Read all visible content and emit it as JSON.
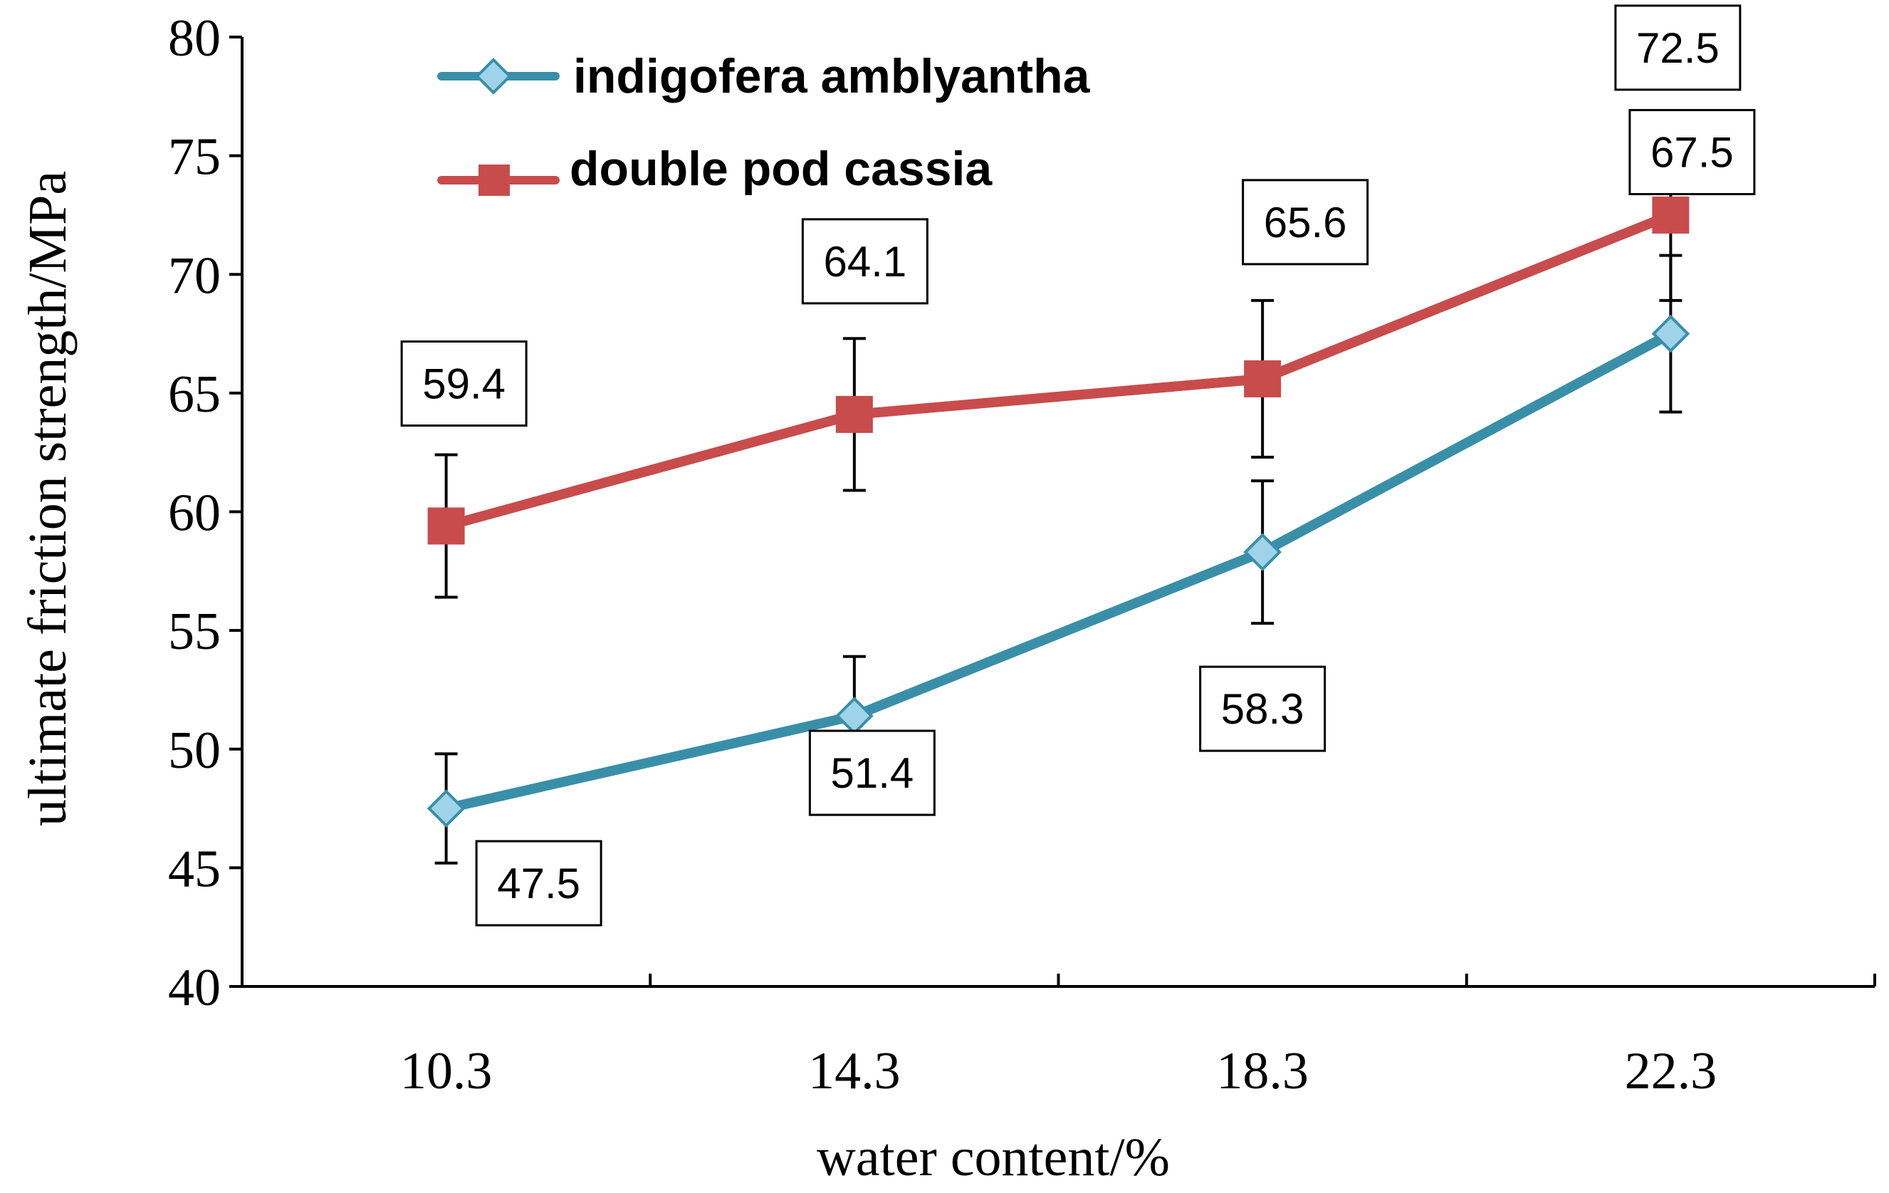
{
  "chart_data": {
    "type": "line",
    "title": "",
    "xlabel": "water content/%",
    "ylabel": "ultimate friction strength/MPa",
    "categories": [
      "10.3",
      "14.3",
      "18.3",
      "22.3"
    ],
    "ylim": [
      40,
      80
    ],
    "yticks": [
      40,
      45,
      50,
      55,
      60,
      65,
      70,
      75,
      80
    ],
    "ytick_labels": [
      "40",
      "45",
      "50",
      "55",
      "60",
      "65",
      "70",
      "75",
      "80"
    ],
    "legend_position": "top-left",
    "grid": false,
    "series": [
      {
        "name": "indigofera amblyantha",
        "color": "#3a8fa8",
        "marker": "diamond",
        "marker_color": "#9ed3ea",
        "values": [
          47.5,
          51.4,
          58.3,
          67.5
        ],
        "error": [
          2.3,
          2.5,
          3.0,
          3.3
        ],
        "labels": [
          "47.5",
          "51.4",
          "58.3",
          "67.5"
        ]
      },
      {
        "name": "double pod cassia",
        "color": "#c84c4c",
        "marker": "square",
        "marker_color": "#c84c4c",
        "values": [
          59.4,
          64.1,
          65.6,
          72.5
        ],
        "error": [
          3.0,
          3.2,
          3.3,
          3.6
        ],
        "labels": [
          "59.4",
          "64.1",
          "65.6",
          "72.5"
        ]
      }
    ]
  }
}
